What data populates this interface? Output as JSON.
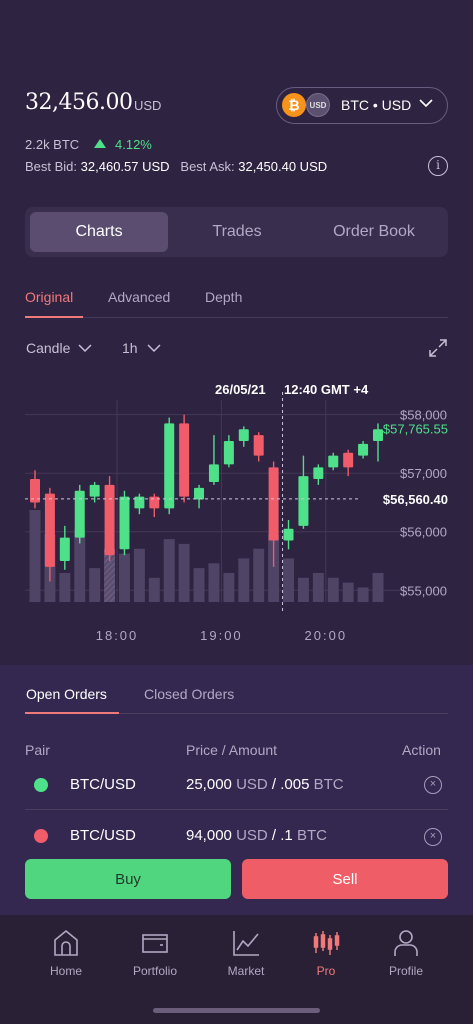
{
  "header": {
    "price": "32,456.00",
    "price_currency": "USD",
    "pair": "BTC • USD",
    "coin_btc": "₿",
    "coin_usd": "USD",
    "volume": "2.2k BTC",
    "change": "4.12%",
    "best_bid_label": "Best Bid:",
    "best_bid": "32,460.57 USD",
    "best_ask_label": "Best Ask:",
    "best_ask": "32,450.40 USD",
    "info_icon": "i"
  },
  "tabs": [
    {
      "label": "Charts",
      "active": true
    },
    {
      "label": "Trades",
      "active": false
    },
    {
      "label": "Order Book",
      "active": false
    }
  ],
  "sub_tabs": [
    {
      "label": "Original",
      "active": true
    },
    {
      "label": "Advanced",
      "active": false
    },
    {
      "label": "Depth",
      "active": false
    }
  ],
  "chart_type_select": "Candle",
  "interval_select": "1h",
  "colors": {
    "up": "#4fe08a",
    "down": "#f05c6a",
    "accent": "#f07a7a",
    "bg": "#2e2340"
  },
  "chart_data": {
    "type": "candlestick",
    "tooltip_date": "26/05/21",
    "tooltip_time": "12:40 GMT +4",
    "current_price_label": "$57,765.55",
    "crosshair_price_label": "$56,560.40",
    "y_ticks": [
      "$58,000",
      "$57,000",
      "$56,000",
      "$55,000"
    ],
    "x_ticks": [
      "18:00",
      "19:00",
      "20:00"
    ],
    "ylim": [
      54800,
      58250
    ],
    "crosshair_price": 56560.4,
    "current_price": 57765.55,
    "candles": [
      {
        "o": 56900,
        "c": 56500,
        "h": 57050,
        "l": 56400
      },
      {
        "o": 56650,
        "c": 55400,
        "h": 56750,
        "l": 55150
      },
      {
        "o": 55500,
        "c": 55900,
        "h": 56100,
        "l": 55350
      },
      {
        "o": 55900,
        "c": 56700,
        "h": 56800,
        "l": 55800
      },
      {
        "o": 56600,
        "c": 56800,
        "h": 56850,
        "l": 56500
      },
      {
        "o": 56800,
        "c": 55600,
        "h": 56950,
        "l": 55500
      },
      {
        "o": 55700,
        "c": 56600,
        "h": 56700,
        "l": 55600
      },
      {
        "o": 56400,
        "c": 56600,
        "h": 56650,
        "l": 56300
      },
      {
        "o": 56600,
        "c": 56400,
        "h": 56650,
        "l": 56250
      },
      {
        "o": 56400,
        "c": 57850,
        "h": 57950,
        "l": 56300
      },
      {
        "o": 57850,
        "c": 56600,
        "h": 58000,
        "l": 56500
      },
      {
        "o": 56550,
        "c": 56750,
        "h": 56800,
        "l": 56400
      },
      {
        "o": 56850,
        "c": 57150,
        "h": 57650,
        "l": 56800
      },
      {
        "o": 57150,
        "c": 57550,
        "h": 57650,
        "l": 57100
      },
      {
        "o": 57550,
        "c": 57750,
        "h": 57800,
        "l": 57450
      },
      {
        "o": 57650,
        "c": 57300,
        "h": 57700,
        "l": 57200
      },
      {
        "o": 57100,
        "c": 55850,
        "h": 57200,
        "l": 55400
      },
      {
        "o": 55850,
        "c": 56050,
        "h": 56200,
        "l": 55700
      },
      {
        "o": 56100,
        "c": 56950,
        "h": 57300,
        "l": 56050
      },
      {
        "o": 56900,
        "c": 57100,
        "h": 57150,
        "l": 56800
      },
      {
        "o": 57100,
        "c": 57300,
        "h": 57350,
        "l": 57050
      },
      {
        "o": 57350,
        "c": 57100,
        "h": 57400,
        "l": 56950
      },
      {
        "o": 57300,
        "c": 57500,
        "h": 57550,
        "l": 57250
      },
      {
        "o": 57550,
        "c": 57750,
        "h": 57850,
        "l": 57200
      }
    ],
    "volumes": [
      95,
      70,
      30,
      75,
      35,
      55,
      50,
      55,
      25,
      65,
      60,
      35,
      40,
      30,
      45,
      55,
      70,
      45,
      25,
      30,
      25,
      20,
      15,
      30
    ]
  },
  "orders": {
    "tabs": [
      {
        "label": "Open Orders",
        "active": true
      },
      {
        "label": "Closed Orders",
        "active": false
      }
    ],
    "columns": [
      "Pair",
      "Price / Amount",
      "Action"
    ],
    "rows": [
      {
        "side": "buy",
        "pair": "BTC/USD",
        "price": "25,000",
        "price_cur": "USD",
        "sep": "/",
        "amount": ".005",
        "amount_cur": "BTC",
        "action": "×"
      },
      {
        "side": "sell",
        "pair": "BTC/USD",
        "price": "94,000",
        "price_cur": "USD",
        "sep": "/",
        "amount": ".1",
        "amount_cur": "BTC",
        "action": "×"
      }
    ],
    "buy_label": "Buy",
    "sell_label": "Sell"
  },
  "nav": [
    {
      "label": "Home",
      "icon": "home-icon",
      "active": false
    },
    {
      "label": "Portfolio",
      "icon": "wallet-icon",
      "active": false
    },
    {
      "label": "Market",
      "icon": "line-chart-icon",
      "active": false
    },
    {
      "label": "Pro",
      "icon": "candles-icon",
      "active": true
    },
    {
      "label": "Profile",
      "icon": "user-icon",
      "active": false
    }
  ]
}
